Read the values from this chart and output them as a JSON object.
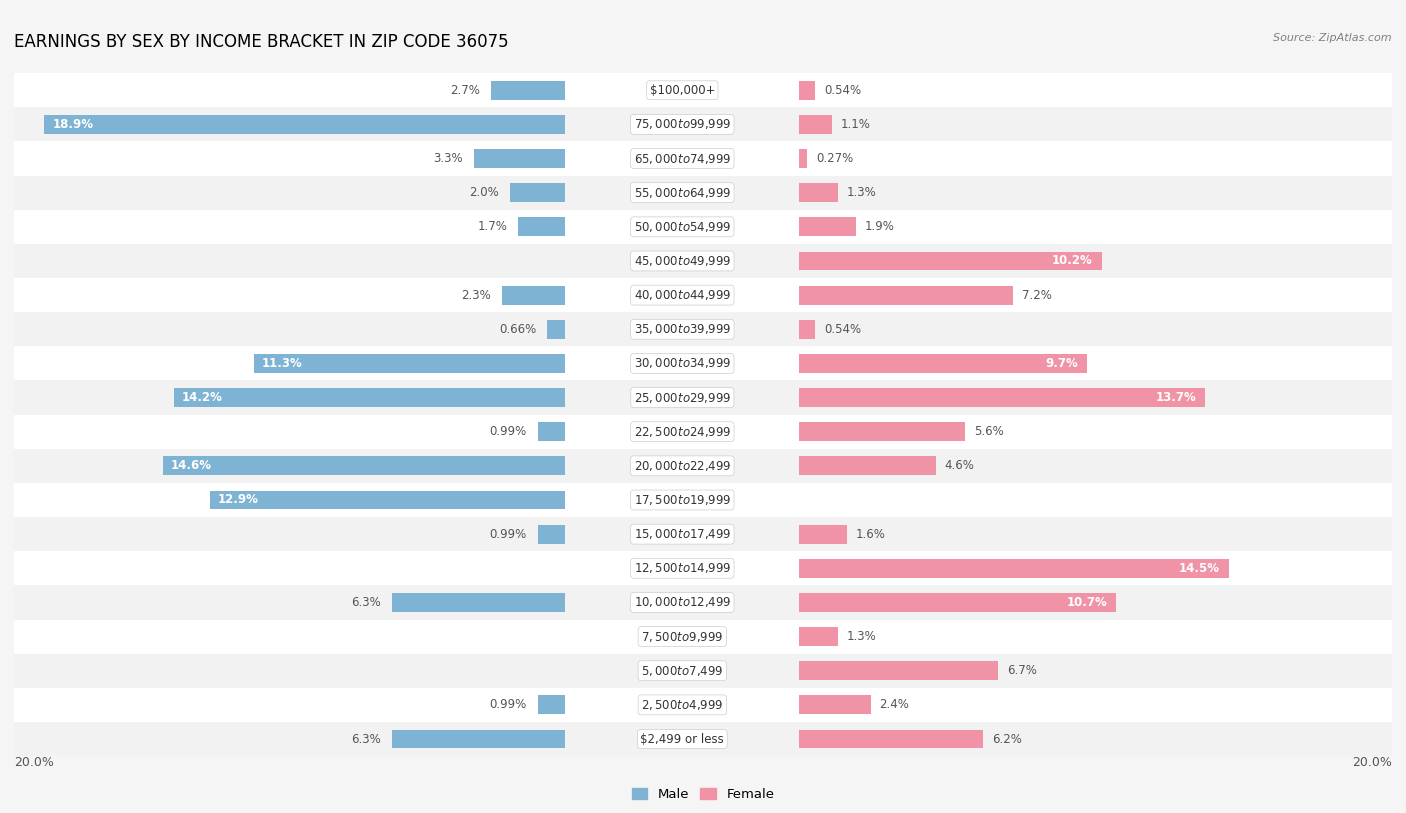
{
  "title": "EARNINGS BY SEX BY INCOME BRACKET IN ZIP CODE 36075",
  "source": "Source: ZipAtlas.com",
  "categories": [
    "$2,499 or less",
    "$2,500 to $4,999",
    "$5,000 to $7,499",
    "$7,500 to $9,999",
    "$10,000 to $12,499",
    "$12,500 to $14,999",
    "$15,000 to $17,499",
    "$17,500 to $19,999",
    "$20,000 to $22,499",
    "$22,500 to $24,999",
    "$25,000 to $29,999",
    "$30,000 to $34,999",
    "$35,000 to $39,999",
    "$40,000 to $44,999",
    "$45,000 to $49,999",
    "$50,000 to $54,999",
    "$55,000 to $64,999",
    "$65,000 to $74,999",
    "$75,000 to $99,999",
    "$100,000+"
  ],
  "male_values": [
    6.3,
    0.99,
    0.0,
    0.0,
    6.3,
    0.0,
    0.99,
    12.9,
    14.6,
    0.99,
    14.2,
    11.3,
    0.66,
    2.3,
    0.0,
    1.7,
    2.0,
    3.3,
    18.9,
    2.7
  ],
  "female_values": [
    6.2,
    2.4,
    6.7,
    1.3,
    10.7,
    14.5,
    1.6,
    0.0,
    4.6,
    5.6,
    13.7,
    9.7,
    0.54,
    7.2,
    10.2,
    1.9,
    1.3,
    0.27,
    1.1,
    0.54
  ],
  "male_color": "#7fb3d3",
  "female_color": "#f093a7",
  "male_label": "Male",
  "female_label": "Female",
  "xlim": 20.0,
  "row_bg_even": "#f2f2f2",
  "row_bg_odd": "#ffffff",
  "background_color": "#f5f5f5",
  "title_fontsize": 12,
  "label_fontsize": 8.5,
  "cat_fontsize": 8.5,
  "tick_fontsize": 9
}
